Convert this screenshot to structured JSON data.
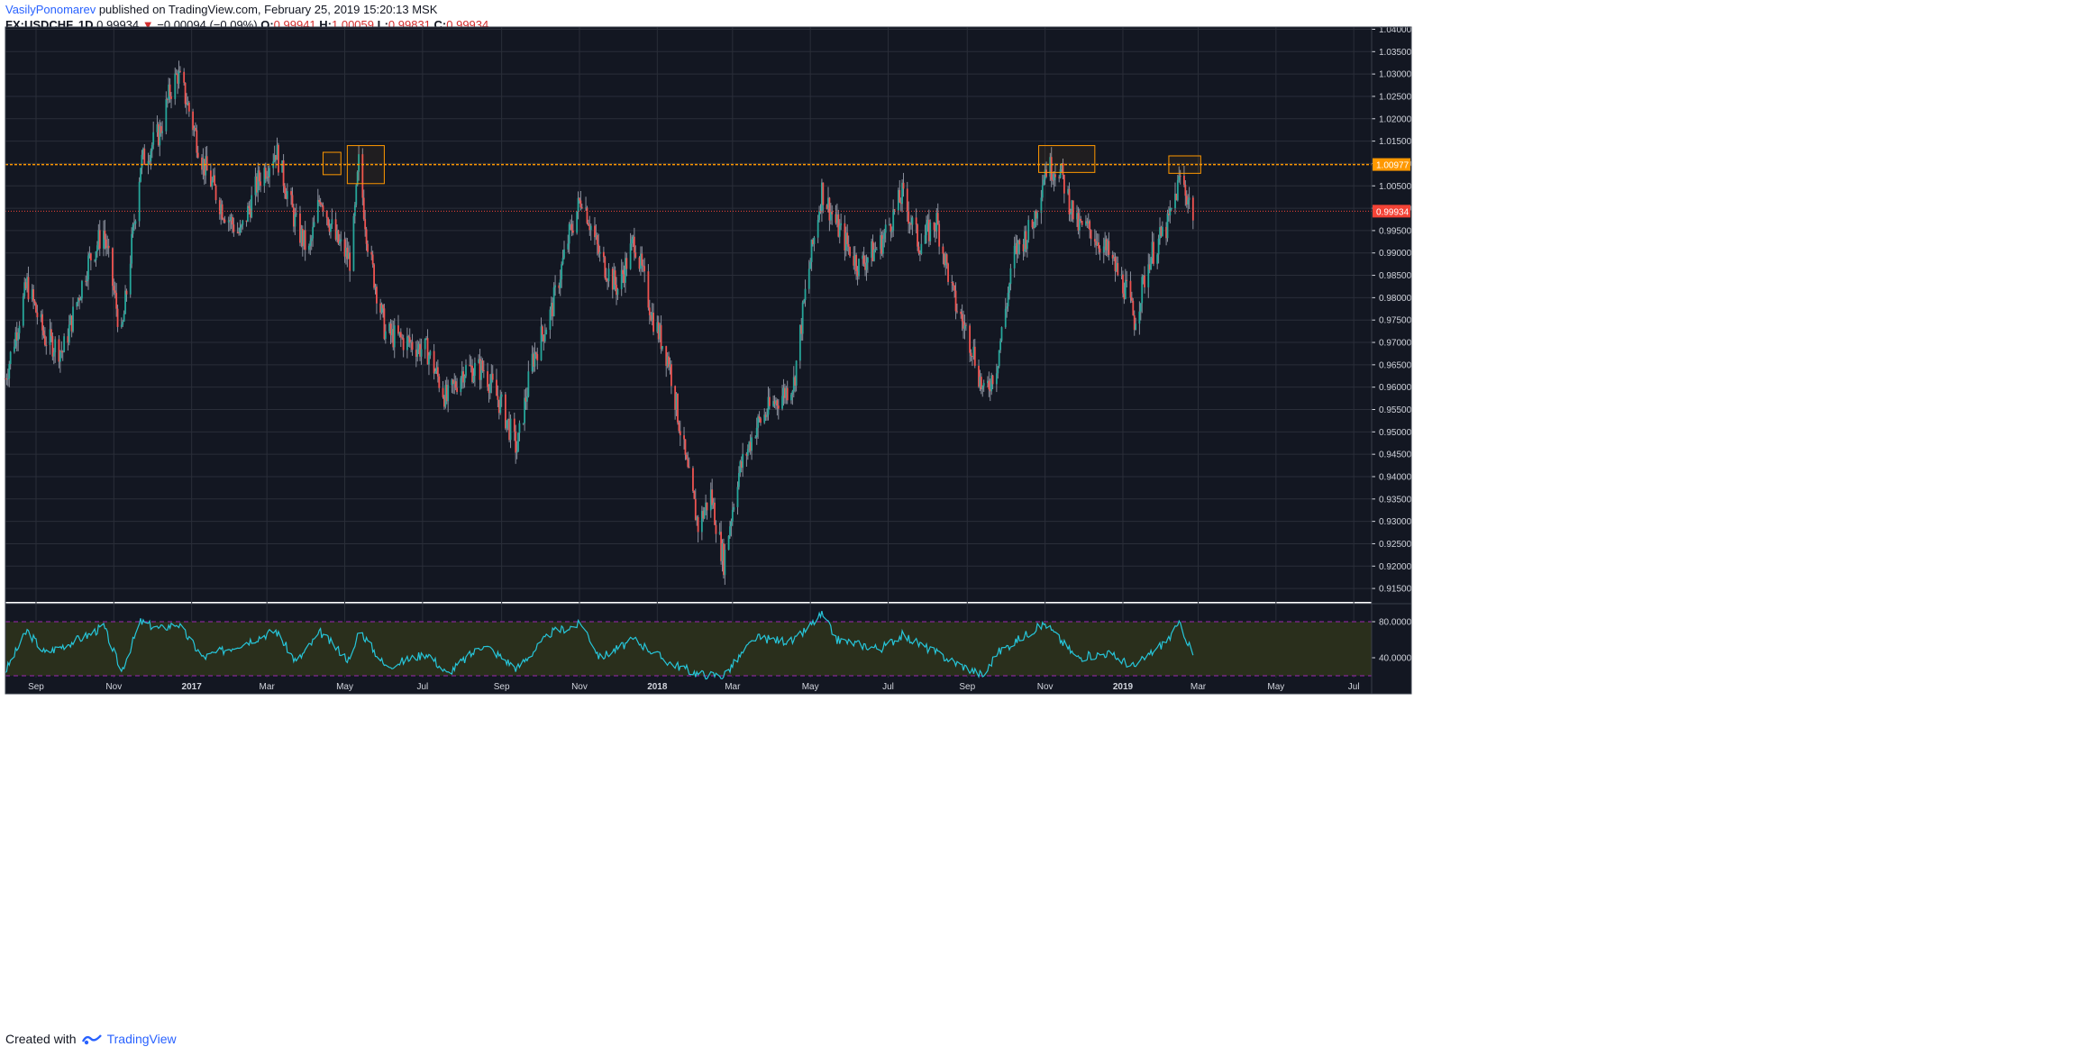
{
  "header": {
    "author": "VasilyPonomarev",
    "published_text": "published on TradingView.com, February 25, 2019 15:20:13 MSK",
    "symbol": "FX:USDCHF, 1D",
    "last": "0.99934",
    "change_arrow": "▼",
    "change": "−0.00094 (−0.09%)",
    "o_label": "O:",
    "o_val": "0.99941",
    "h_label": "H:",
    "h_val": "1.00059",
    "l_label": "L:",
    "l_val": "0.99831",
    "c_label": "C:",
    "c_val": "0.99934"
  },
  "footer": {
    "created_with": "Created with",
    "brand": "TradingView"
  },
  "colors": {
    "background": "#131722",
    "up": "#26a69a",
    "down": "#ef5350",
    "wick": "#8a8f9c",
    "resistance": "#ff9800",
    "rsi_line": "#26c6da",
    "rsi_band": "#2a2f1c",
    "rsi_bound": "#9c27b0",
    "price_tag": "#f44336",
    "grid": "#2a2e39",
    "axis_text": "#d1d4dc"
  },
  "chart_data": [
    {
      "type": "candlestick",
      "title": "FX:USDCHF, 1D",
      "ylim": [
        0.912,
        1.0405
      ],
      "y_ticks": [
        "0.91500",
        "0.92000",
        "0.92500",
        "0.93000",
        "0.93500",
        "0.94000",
        "0.94500",
        "0.95000",
        "0.95500",
        "0.96000",
        "0.96500",
        "0.97000",
        "0.97500",
        "0.98000",
        "0.98500",
        "0.99000",
        "0.99500",
        "1.00000",
        "1.00500",
        "1.01000",
        "1.01500",
        "1.02000",
        "1.02500",
        "1.03000",
        "1.03500",
        "1.04000"
      ],
      "x_labels": [
        "Sep",
        "Nov",
        "2017",
        "Mar",
        "May",
        "Jul",
        "Sep",
        "Nov",
        "2018",
        "Mar",
        "May",
        "Jul",
        "Sep",
        "Nov",
        "2019",
        "Mar",
        "May",
        "Jul"
      ],
      "x_range": [
        "2016-08-08",
        "2019-07-15"
      ],
      "path_points": [
        [
          "2016-08-08",
          0.962
        ],
        [
          "2016-08-25",
          0.983
        ],
        [
          "2016-09-08",
          0.971
        ],
        [
          "2016-09-22",
          0.968
        ],
        [
          "2016-10-12",
          0.988
        ],
        [
          "2016-10-24",
          0.995
        ],
        [
          "2016-11-07",
          0.971
        ],
        [
          "2016-11-22",
          1.01
        ],
        [
          "2016-12-07",
          1.017
        ],
        [
          "2016-12-15",
          1.026
        ],
        [
          "2016-12-21",
          1.03
        ],
        [
          "2016-12-28",
          1.024
        ],
        [
          "2017-01-10",
          1.01
        ],
        [
          "2017-01-25",
          1.0
        ],
        [
          "2017-02-08",
          0.994
        ],
        [
          "2017-02-22",
          1.006
        ],
        [
          "2017-03-08",
          1.013
        ],
        [
          "2017-03-24",
          0.996
        ],
        [
          "2017-04-03",
          0.99
        ],
        [
          "2017-04-12",
          1.003
        ],
        [
          "2017-04-24",
          0.993
        ],
        [
          "2017-05-06",
          0.988
        ],
        [
          "2017-05-12",
          1.01
        ],
        [
          "2017-05-20",
          0.99
        ],
        [
          "2017-06-02",
          0.972
        ],
        [
          "2017-06-20",
          0.97
        ],
        [
          "2017-07-05",
          0.968
        ],
        [
          "2017-07-20",
          0.957
        ],
        [
          "2017-08-02",
          0.964
        ],
        [
          "2017-08-18",
          0.964
        ],
        [
          "2017-09-02",
          0.955
        ],
        [
          "2017-09-13",
          0.946
        ],
        [
          "2017-09-25",
          0.966
        ],
        [
          "2017-10-10",
          0.977
        ],
        [
          "2017-10-24",
          0.994
        ],
        [
          "2017-11-03",
          1.003
        ],
        [
          "2017-11-17",
          0.989
        ],
        [
          "2017-12-01",
          0.982
        ],
        [
          "2017-12-14",
          0.993
        ],
        [
          "2017-12-28",
          0.976
        ],
        [
          "2018-01-10",
          0.966
        ],
        [
          "2018-01-24",
          0.942
        ],
        [
          "2018-02-02",
          0.929
        ],
        [
          "2018-02-12",
          0.936
        ],
        [
          "2018-02-22",
          0.921
        ],
        [
          "2018-03-05",
          0.94
        ],
        [
          "2018-03-19",
          0.951
        ],
        [
          "2018-04-01",
          0.956
        ],
        [
          "2018-04-18",
          0.961
        ],
        [
          "2018-04-28",
          0.983
        ],
        [
          "2018-05-10",
          1.004
        ],
        [
          "2018-05-22",
          0.996
        ],
        [
          "2018-06-08",
          0.987
        ],
        [
          "2018-06-25",
          0.992
        ],
        [
          "2018-07-12",
          1.003
        ],
        [
          "2018-07-25",
          0.992
        ],
        [
          "2018-08-08",
          0.997
        ],
        [
          "2018-08-22",
          0.979
        ],
        [
          "2018-09-05",
          0.969
        ],
        [
          "2018-09-14",
          0.958
        ],
        [
          "2018-09-24",
          0.965
        ],
        [
          "2018-10-08",
          0.99
        ],
        [
          "2018-10-22",
          0.996
        ],
        [
          "2018-11-01",
          1.009
        ],
        [
          "2018-11-12",
          1.009
        ],
        [
          "2018-11-26",
          0.996
        ],
        [
          "2018-12-07",
          0.995
        ],
        [
          "2018-12-20",
          0.99
        ],
        [
          "2019-01-03",
          0.982
        ],
        [
          "2019-01-10",
          0.975
        ],
        [
          "2019-01-22",
          0.989
        ],
        [
          "2019-02-05",
          0.996
        ],
        [
          "2019-02-15",
          1.007
        ],
        [
          "2019-02-25",
          0.999
        ]
      ],
      "resistance_level": 1.00977,
      "resistance_label": "1.00977",
      "last_price": 0.99934,
      "last_price_label": "0.99934",
      "highlight_boxes": [
        {
          "from": "2017-04-14",
          "to": "2017-04-28",
          "low": 1.0075,
          "high": 1.0125
        },
        {
          "from": "2017-05-03",
          "to": "2017-06-01",
          "low": 1.0055,
          "high": 1.014
        },
        {
          "from": "2018-10-27",
          "to": "2018-12-10",
          "low": 1.008,
          "high": 1.014
        },
        {
          "from": "2019-02-06",
          "to": "2019-03-03",
          "low": 1.0078,
          "high": 1.0117
        }
      ]
    },
    {
      "type": "line",
      "title": "RSI",
      "ylim": [
        18,
        100
      ],
      "y_ticks": [
        "40.0000",
        "80.0000"
      ],
      "band": [
        20,
        80
      ],
      "path_points": [
        [
          "2016-08-08",
          25
        ],
        [
          "2016-08-25",
          70
        ],
        [
          "2016-09-08",
          45
        ],
        [
          "2016-10-12",
          65
        ],
        [
          "2016-10-24",
          75
        ],
        [
          "2016-11-07",
          25
        ],
        [
          "2016-11-22",
          80
        ],
        [
          "2016-12-07",
          72
        ],
        [
          "2016-12-21",
          78
        ],
        [
          "2017-01-10",
          40
        ],
        [
          "2017-02-08",
          55
        ],
        [
          "2017-03-08",
          70
        ],
        [
          "2017-03-24",
          35
        ],
        [
          "2017-04-12",
          68
        ],
        [
          "2017-05-06",
          35
        ],
        [
          "2017-05-12",
          72
        ],
        [
          "2017-06-02",
          30
        ],
        [
          "2017-07-05",
          45
        ],
        [
          "2017-07-20",
          22
        ],
        [
          "2017-08-18",
          55
        ],
        [
          "2017-09-13",
          28
        ],
        [
          "2017-10-10",
          68
        ],
        [
          "2017-11-03",
          78
        ],
        [
          "2017-11-17",
          40
        ],
        [
          "2017-12-14",
          60
        ],
        [
          "2018-01-10",
          35
        ],
        [
          "2018-02-02",
          22
        ],
        [
          "2018-02-22",
          20
        ],
        [
          "2018-03-19",
          62
        ],
        [
          "2018-04-18",
          58
        ],
        [
          "2018-05-10",
          88
        ],
        [
          "2018-05-22",
          60
        ],
        [
          "2018-06-25",
          50
        ],
        [
          "2018-07-12",
          65
        ],
        [
          "2018-08-22",
          35
        ],
        [
          "2018-09-14",
          20
        ],
        [
          "2018-09-24",
          45
        ],
        [
          "2018-10-22",
          70
        ],
        [
          "2018-11-01",
          78
        ],
        [
          "2018-11-26",
          40
        ],
        [
          "2018-12-20",
          45
        ],
        [
          "2019-01-10",
          30
        ],
        [
          "2019-02-05",
          60
        ],
        [
          "2019-02-15",
          78
        ],
        [
          "2019-02-25",
          42
        ]
      ]
    }
  ]
}
